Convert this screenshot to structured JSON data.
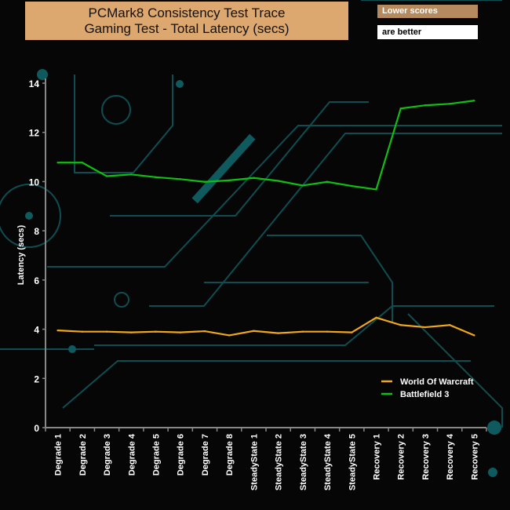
{
  "chart_data": {
    "type": "line",
    "title": "PCMark8 Consistency Test Trace",
    "subtitle": "Gaming Test -  Total Latency (secs)",
    "note": [
      "Lower scores",
      "are better"
    ],
    "ylabel": "Latency (secs)",
    "xlabel": "",
    "ylim": [
      0,
      14
    ],
    "yticks": [
      0,
      2,
      4,
      6,
      8,
      10,
      12,
      14
    ],
    "grid": false,
    "legend": "bottom-right",
    "categories": [
      "Degrade 1",
      "Degrade 2",
      "Degrade 3",
      "Degrade 4",
      "Degrade 5",
      "Degrade 6",
      "Degrade 7",
      "Degrade 8",
      "SteadyState 1",
      "SteadyState 2",
      "SteadyState 3",
      "SteadyState 4",
      "SteadyState 5",
      "Recovery 1",
      "Recovery 2",
      "Recovery 3",
      "Recovery 4",
      "Recovery 5"
    ],
    "series": [
      {
        "name": "World Of Warcraft",
        "color": "#f0a818",
        "values": [
          3.95,
          3.9,
          3.9,
          3.87,
          3.9,
          3.87,
          3.92,
          3.75,
          3.93,
          3.84,
          3.9,
          3.9,
          3.87,
          4.47,
          4.17,
          4.08,
          4.17,
          3.75
        ]
      },
      {
        "name": "Battlefield 3",
        "color": "#10c010",
        "values": [
          10.77,
          10.77,
          10.22,
          10.29,
          10.18,
          10.1,
          9.99,
          10.05,
          10.15,
          10.03,
          9.84,
          9.99,
          9.82,
          9.68,
          12.97,
          13.1,
          13.16,
          13.29
        ]
      }
    ]
  },
  "colors": {
    "background": "#060606",
    "circuit": "#0e5a5e",
    "axis": "#888888",
    "title_bg": "#dca870"
  }
}
